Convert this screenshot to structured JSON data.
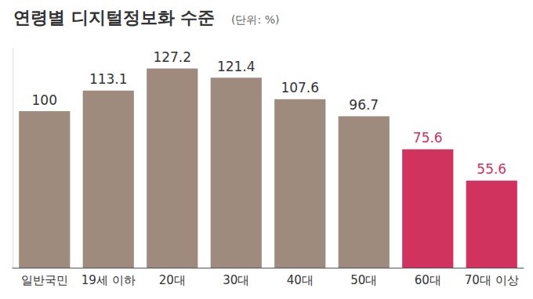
{
  "chart_data": {
    "type": "bar",
    "title": "연령별 디지털정보화 수준",
    "subtitle": "(단위: %)",
    "categories": [
      "일반국민",
      "19세 이하",
      "20대",
      "30대",
      "40대",
      "50대",
      "60대",
      "70대 이상"
    ],
    "values": [
      100,
      113.1,
      127.2,
      121.4,
      107.6,
      96.7,
      75.6,
      55.6
    ],
    "colors": [
      "#9e8b7e",
      "#9e8b7e",
      "#9e8b7e",
      "#9e8b7e",
      "#9e8b7e",
      "#9e8b7e",
      "#d1335f",
      "#d1335f"
    ],
    "ylim": [
      0,
      140
    ],
    "yticks": [],
    "grid": false,
    "data_labels": true,
    "tick_labels": "x"
  }
}
